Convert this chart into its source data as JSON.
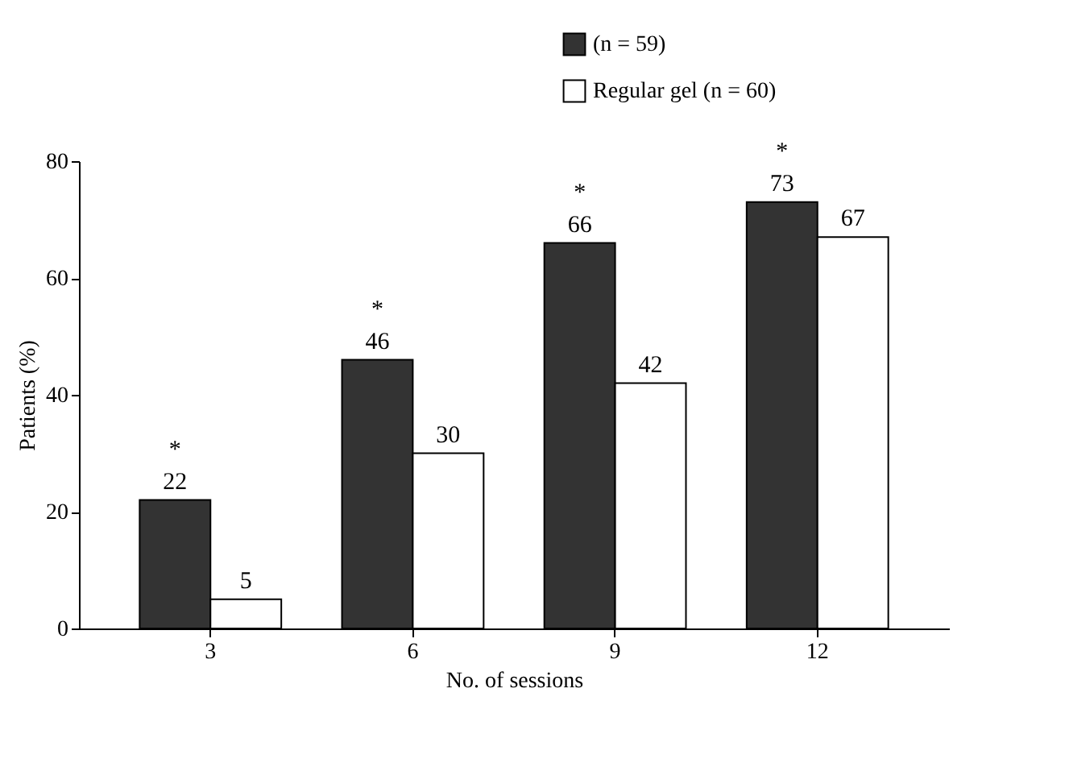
{
  "chart_data": {
    "type": "bar",
    "xlabel": "No. of sessions",
    "ylabel": "Patients (%)",
    "categories": [
      "3",
      "6",
      "9",
      "12"
    ],
    "series": [
      {
        "name": "(n = 59)",
        "color": "#333333",
        "values": [
          22,
          46,
          66,
          73
        ]
      },
      {
        "name": "Regular gel (n = 60)",
        "color": "#ffffff",
        "values": [
          5,
          30,
          42,
          67
        ]
      }
    ],
    "ylim": [
      0,
      80
    ],
    "yticks": [
      0,
      20,
      40,
      60,
      80
    ],
    "grid": false,
    "legend": "top right",
    "data_labels": true,
    "annotations": [
      {
        "text": "*",
        "x": "3",
        "y": 22
      },
      {
        "text": "*",
        "x": "6",
        "y": 46
      },
      {
        "text": "*",
        "x": "9",
        "y": 66
      },
      {
        "text": "*",
        "x": "12",
        "y": 73
      }
    ]
  }
}
